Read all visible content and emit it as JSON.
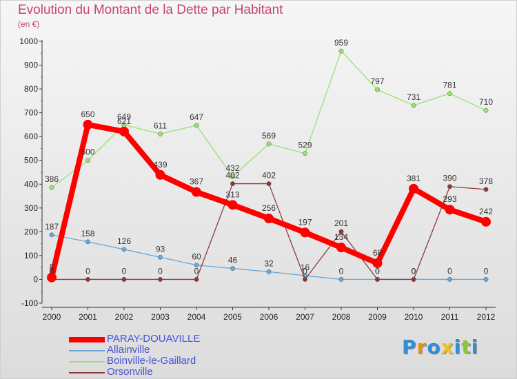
{
  "title": "Evolution du Montant de la Dette par Habitant",
  "subtitle": "(en €)",
  "brand": "Proxiti",
  "brand_colors": [
    "#2f8fd8",
    "#f08a1a",
    "#2f8fd8",
    "#f0c020",
    "#2f8fd8",
    "#8cc63f",
    "#2f8fd8"
  ],
  "chart_data": {
    "type": "line",
    "title": "Evolution du Montant de la Dette par Habitant",
    "ylabel": "(en €)",
    "x": [
      2000,
      2001,
      2002,
      2003,
      2004,
      2005,
      2006,
      2007,
      2008,
      2009,
      2010,
      2011,
      2012
    ],
    "yticks": [
      -100,
      0,
      100,
      200,
      300,
      400,
      500,
      600,
      700,
      800,
      900,
      1000
    ],
    "ylim": [
      -100,
      1000
    ],
    "grid": false,
    "legend_position": "bottom-left",
    "series": [
      {
        "name": "Allainville",
        "color": "#6aa7d8",
        "values": [
          187,
          158,
          126,
          93,
          60,
          46,
          32,
          16,
          0,
          0,
          0,
          0,
          0
        ]
      },
      {
        "name": "Boinville-le-Gaillard",
        "color": "#99e26f",
        "values": [
          386,
          500,
          649,
          611,
          647,
          432,
          569,
          529,
          959,
          797,
          731,
          781,
          710
        ]
      },
      {
        "name": "Orsonville",
        "color": "#8b3a3a",
        "values": [
          0,
          0,
          0,
          0,
          0,
          402,
          402,
          0,
          201,
          0,
          0,
          390,
          378
        ]
      },
      {
        "name": "PARAY-DOUAVILLE",
        "color": "#ff0000",
        "values": [
          8,
          650,
          621,
          439,
          367,
          313,
          256,
          197,
          134,
          68,
          381,
          293,
          242
        ]
      }
    ],
    "legend": [
      "PARAY-DOUAVILLE",
      "Allainville",
      "Boinville-le-Gaillard",
      "Orsonville"
    ]
  }
}
